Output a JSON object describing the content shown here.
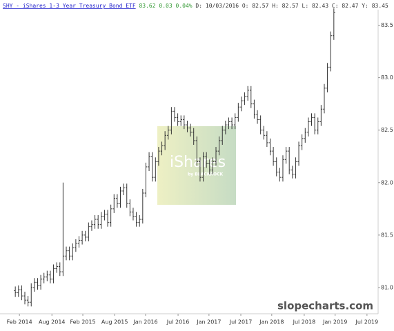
{
  "chart_data": {
    "type": "ohlc",
    "title": "SHY - iShares 1-3 Year Treasury Bond ETF",
    "last": "83.62",
    "change": "0.03",
    "change_pct": "0.04%",
    "readout": "D: 10/03/2016  O: 82.57  H: 82.57  L: 82.43  C: 82.47  Y: 83.45",
    "watermark": {
      "title": "iShares",
      "subtitle": "by BLACKROCK"
    },
    "credit": "slopecharts.com",
    "color": "#333333",
    "xlim": [
      -4.8,
      113.9
    ],
    "xticks": [
      {
        "value": 1.3,
        "label": "Feb 2014"
      },
      {
        "value": 11.5,
        "label": "Aug 2014"
      },
      {
        "value": 21.2,
        "label": "Feb 2015"
      },
      {
        "value": 31.2,
        "label": "Aug 2015"
      },
      {
        "value": 40.9,
        "label": "Jan 2016"
      },
      {
        "value": 51.1,
        "label": "Jul 2016"
      },
      {
        "value": 60.8,
        "label": "Jan 2017"
      },
      {
        "value": 70.8,
        "label": "Jul 2017"
      },
      {
        "value": 80.5,
        "label": "Jan 2018"
      },
      {
        "value": 90.7,
        "label": "Jul 2018"
      },
      {
        "value": 100.4,
        "label": "Jan 2019"
      },
      {
        "value": 110.4,
        "label": "Jul 2019"
      }
    ],
    "ylim": [
      80.75,
      83.74
    ],
    "yticks": [
      {
        "value": 81,
        "label": "81.0"
      },
      81.5,
      {
        "value": 82,
        "label": "82.0"
      },
      82.5,
      {
        "value": 83,
        "label": "83.0"
      },
      83.5
    ],
    "open": [
      80.97,
      80.95,
      80.98,
      80.92,
      80.88,
      80.86,
      81.0,
      81.05,
      81.02,
      81.08,
      81.1,
      81.12,
      81.08,
      81.18,
      81.2,
      81.15,
      81.3,
      81.35,
      81.3,
      81.38,
      81.42,
      81.45,
      81.5,
      81.48,
      81.58,
      81.6,
      81.65,
      81.6,
      81.68,
      81.7,
      81.62,
      81.75,
      81.85,
      81.8,
      81.92,
      81.95,
      81.8,
      81.72,
      81.68,
      81.62,
      81.65,
      81.9,
      82.15,
      82.25,
      82.05,
      82.2,
      82.3,
      82.35,
      82.45,
      82.5,
      82.68,
      82.62,
      82.58,
      82.6,
      82.55,
      82.52,
      82.48,
      82.4,
      82.2,
      82.05,
      82.25,
      82.18,
      82.12,
      82.2,
      82.3,
      82.4,
      82.5,
      82.55,
      82.58,
      82.55,
      82.62,
      82.72,
      82.78,
      82.82,
      82.88,
      82.75,
      82.65,
      82.6,
      82.5,
      82.45,
      82.38,
      82.3,
      82.2,
      82.1,
      82.05,
      82.22,
      82.3,
      82.12,
      82.08,
      82.2,
      82.35,
      82.42,
      82.48,
      82.58,
      82.62,
      82.5,
      82.58,
      82.7,
      82.9,
      83.1,
      83.4
    ],
    "high": [
      81.01,
      81.02,
      81.02,
      80.96,
      80.92,
      81.04,
      81.09,
      81.09,
      81.12,
      81.14,
      81.16,
      81.16,
      81.22,
      81.24,
      81.24,
      82.0,
      81.39,
      81.39,
      81.42,
      81.46,
      81.49,
      81.54,
      81.54,
      81.62,
      81.64,
      81.69,
      81.69,
      81.72,
      81.74,
      81.74,
      81.79,
      81.89,
      81.89,
      81.96,
      81.99,
      81.99,
      81.84,
      81.76,
      81.72,
      81.69,
      81.94,
      82.19,
      82.29,
      82.29,
      82.24,
      82.34,
      82.39,
      82.49,
      82.54,
      82.72,
      82.72,
      82.66,
      82.64,
      82.64,
      82.59,
      82.56,
      82.52,
      82.44,
      82.24,
      82.29,
      82.29,
      82.22,
      82.24,
      82.34,
      82.44,
      82.54,
      82.59,
      82.62,
      82.62,
      82.66,
      82.76,
      82.82,
      82.86,
      82.92,
      82.92,
      82.79,
      82.69,
      82.64,
      82.54,
      82.49,
      82.42,
      82.34,
      82.24,
      82.14,
      82.26,
      82.34,
      82.34,
      82.16,
      82.24,
      82.39,
      82.46,
      82.52,
      82.62,
      82.66,
      82.66,
      82.62,
      82.74,
      82.94,
      83.14,
      83.44,
      83.66
    ],
    "low": [
      80.91,
      80.91,
      80.88,
      80.84,
      80.82,
      80.82,
      80.96,
      80.98,
      80.98,
      81.04,
      81.06,
      81.04,
      81.04,
      81.14,
      81.11,
      81.11,
      81.26,
      81.26,
      81.26,
      81.34,
      81.38,
      81.41,
      81.44,
      81.44,
      81.54,
      81.56,
      81.56,
      81.56,
      81.64,
      81.58,
      81.58,
      81.71,
      81.76,
      81.76,
      81.88,
      81.76,
      81.68,
      81.64,
      81.58,
      81.58,
      81.61,
      81.86,
      82.11,
      82.01,
      82.01,
      82.16,
      82.26,
      82.31,
      82.41,
      82.46,
      82.58,
      82.54,
      82.54,
      82.51,
      82.48,
      82.44,
      82.36,
      82.16,
      82.01,
      82.01,
      82.14,
      82.08,
      82.08,
      82.16,
      82.26,
      82.36,
      82.46,
      82.51,
      82.51,
      82.51,
      82.58,
      82.68,
      82.74,
      82.78,
      82.71,
      82.61,
      82.56,
      82.46,
      82.41,
      82.34,
      82.26,
      82.16,
      82.06,
      82.01,
      82.01,
      82.18,
      82.08,
      82.04,
      82.04,
      82.16,
      82.31,
      82.38,
      82.44,
      82.54,
      82.46,
      82.46,
      82.54,
      82.66,
      82.86,
      83.06,
      83.36
    ],
    "close": [
      80.95,
      80.98,
      80.92,
      80.88,
      80.86,
      81.0,
      81.05,
      81.02,
      81.08,
      81.1,
      81.12,
      81.08,
      81.18,
      81.2,
      81.15,
      81.3,
      81.35,
      81.3,
      81.38,
      81.42,
      81.45,
      81.5,
      81.48,
      81.58,
      81.6,
      81.65,
      81.6,
      81.68,
      81.7,
      81.62,
      81.75,
      81.85,
      81.8,
      81.92,
      81.95,
      81.8,
      81.72,
      81.68,
      81.62,
      81.65,
      81.9,
      82.15,
      82.25,
      82.05,
      82.2,
      82.3,
      82.35,
      82.45,
      82.5,
      82.68,
      82.62,
      82.58,
      82.6,
      82.55,
      82.52,
      82.48,
      82.4,
      82.2,
      82.05,
      82.25,
      82.18,
      82.12,
      82.2,
      82.3,
      82.4,
      82.5,
      82.55,
      82.58,
      82.55,
      82.62,
      82.72,
      82.78,
      82.82,
      82.88,
      82.75,
      82.65,
      82.6,
      82.5,
      82.45,
      82.38,
      82.3,
      82.2,
      82.1,
      82.05,
      82.22,
      82.3,
      82.12,
      82.08,
      82.2,
      82.35,
      82.42,
      82.48,
      82.58,
      82.62,
      82.5,
      82.58,
      82.7,
      82.9,
      83.1,
      83.4,
      83.62
    ]
  }
}
